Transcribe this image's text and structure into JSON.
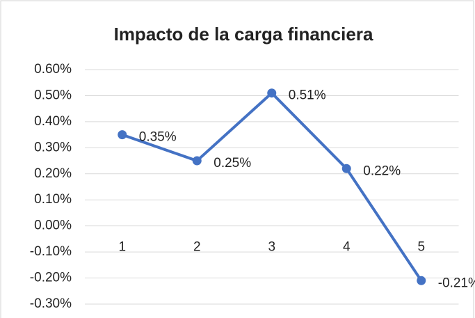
{
  "chart_data": {
    "type": "line",
    "title": "Impacto de la carga financiera",
    "categories": [
      "1",
      "2",
      "3",
      "4",
      "5"
    ],
    "series": [
      {
        "color": "#4472c4",
        "values": [
          0.35,
          0.25,
          0.51,
          0.22,
          -0.21
        ],
        "value_labels": [
          "0.35%",
          "0.25%",
          "0.51%",
          "0.22%",
          "-0.21%"
        ]
      }
    ],
    "ylim": [
      -0.3,
      0.6
    ],
    "yticks": [
      {
        "value": -0.3,
        "label": "-0.30%"
      },
      {
        "value": -0.2,
        "label": "-0.20%"
      },
      {
        "value": -0.1,
        "label": "-0.10%"
      },
      {
        "value": 0,
        "label": "0.00%"
      },
      {
        "value": 0.1,
        "label": "0.10%"
      },
      {
        "value": 0.2,
        "label": "0.20%"
      },
      {
        "value": 0.3,
        "label": "0.30%"
      },
      {
        "value": 0.4,
        "label": "0.40%"
      },
      {
        "value": 0.5,
        "label": "0.50%"
      },
      {
        "value": 0.6,
        "label": "0.60%"
      }
    ],
    "grid": true
  }
}
